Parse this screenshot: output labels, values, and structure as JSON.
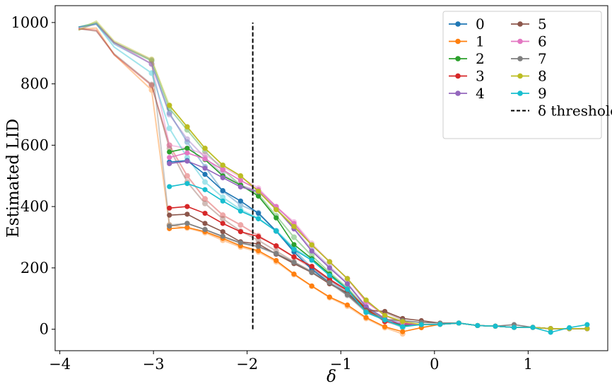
{
  "chart_data": {
    "type": "line",
    "title": "",
    "xlabel": "δ",
    "ylabel": "Estimated LID",
    "xlim": [
      -4.05,
      1.85
    ],
    "ylim": [
      -70,
      1055
    ],
    "xticks": [
      -4,
      -3,
      -2,
      -1,
      0,
      1
    ],
    "xtick_labels": [
      "−4",
      "−3",
      "−2",
      "−1",
      "0",
      "1"
    ],
    "yticks": [
      0,
      200,
      400,
      600,
      800,
      1000
    ],
    "ytick_labels": [
      "0",
      "200",
      "400",
      "600",
      "800",
      "1000"
    ],
    "grid": false,
    "legend": {
      "placement": "top-right",
      "columns": 2
    },
    "threshold": {
      "name": "δ threshold",
      "x": -1.94,
      "y_from": 0,
      "y_to": 1000,
      "style": "dashed",
      "color": "#000000"
    },
    "x": [
      -3.8,
      -3.61,
      -3.42,
      -3.02,
      -2.83,
      -2.64,
      -2.45,
      -2.26,
      -2.07,
      -1.88,
      -1.69,
      -1.5,
      -1.31,
      -1.12,
      -0.93,
      -0.73,
      -0.53,
      -0.34,
      -0.14,
      0.06,
      0.26,
      0.46,
      0.65,
      0.85,
      1.05,
      1.24,
      1.44,
      1.63
    ],
    "faded_start_index": 4,
    "faded_end_index": 16,
    "series": [
      {
        "name": "0",
        "color": "#1f77b4",
        "values": [
          985,
          995,
          930,
          865,
          545,
          550,
          505,
          452,
          418,
          378,
          320,
          252,
          195,
          152,
          115,
          62,
          28,
          12,
          15,
          16,
          20,
          12,
          10,
          6,
          6,
          2,
          2,
          2
        ],
        "faded": [
          985,
          995,
          930,
          865,
          705,
          610,
          530,
          450,
          405,
          380,
          320,
          260,
          200,
          160,
          118,
          70,
          30,
          8
        ]
      },
      {
        "name": "1",
        "color": "#ff7f0e",
        "values": [
          978,
          982,
          895,
          780,
          328,
          332,
          318,
          296,
          272,
          256,
          224,
          180,
          141,
          105,
          79,
          38,
          8,
          -8,
          5,
          16,
          20,
          12,
          10,
          6,
          6,
          2,
          2,
          2
        ],
        "faded": [
          978,
          982,
          895,
          780,
          340,
          330,
          315,
          290,
          268,
          252,
          220,
          178,
          140,
          103,
          75,
          35,
          5,
          -15
        ]
      },
      {
        "name": "2",
        "color": "#2ca02c",
        "values": [
          985,
          1000,
          935,
          875,
          578,
          590,
          553,
          500,
          470,
          434,
          363,
          276,
          230,
          180,
          130,
          65,
          28,
          12,
          15,
          16,
          20,
          12,
          10,
          6,
          6,
          2,
          2,
          2
        ],
        "faded": [
          985,
          1000,
          935,
          875,
          720,
          650,
          580,
          520,
          470,
          440,
          370,
          300,
          240,
          185,
          135,
          70,
          30,
          10
        ]
      },
      {
        "name": "3",
        "color": "#d62728",
        "values": [
          980,
          975,
          895,
          795,
          395,
          400,
          378,
          345,
          318,
          302,
          272,
          236,
          205,
          163,
          127,
          68,
          25,
          18,
          15,
          16,
          20,
          12,
          10,
          6,
          6,
          2,
          2,
          2
        ],
        "faded": [
          980,
          975,
          895,
          795,
          600,
          500,
          425,
          372,
          340,
          305,
          270,
          235,
          200,
          160,
          125,
          65,
          25,
          10
        ]
      },
      {
        "name": "4",
        "color": "#9467bd",
        "values": [
          985,
          995,
          935,
          865,
          540,
          548,
          525,
          494,
          464,
          448,
          393,
          327,
          255,
          200,
          148,
          73,
          35,
          15,
          15,
          16,
          20,
          12,
          10,
          6,
          6,
          2,
          2,
          2
        ],
        "faded": [
          985,
          995,
          935,
          865,
          700,
          620,
          560,
          505,
          470,
          450,
          395,
          330,
          260,
          205,
          150,
          75,
          35,
          12
        ]
      },
      {
        "name": "5",
        "color": "#8c564b",
        "values": [
          980,
          972,
          898,
          798,
          372,
          375,
          345,
          318,
          285,
          278,
          245,
          214,
          185,
          148,
          118,
          62,
          58,
          35,
          28,
          20,
          20,
          12,
          10,
          6,
          6,
          2,
          2,
          2
        ],
        "faded": [
          980,
          972,
          898,
          798,
          590,
          480,
          410,
          360,
          320,
          290,
          255,
          220,
          188,
          150,
          118,
          65,
          55,
          30
        ]
      },
      {
        "name": "6",
        "color": "#e377c2",
        "values": [
          982,
          995,
          935,
          865,
          560,
          575,
          555,
          520,
          485,
          455,
          400,
          345,
          275,
          220,
          165,
          90,
          45,
          22,
          15,
          16,
          20,
          12,
          10,
          6,
          6,
          2,
          2,
          2
        ],
        "faded": [
          982,
          995,
          935,
          865,
          600,
          590,
          570,
          530,
          495,
          460,
          400,
          350,
          280,
          220,
          165,
          90,
          45,
          20
        ]
      },
      {
        "name": "7",
        "color": "#7f7f7f",
        "values": [
          975,
          998,
          935,
          878,
          336,
          345,
          325,
          303,
          282,
          270,
          247,
          218,
          186,
          152,
          112,
          58,
          32,
          28,
          22,
          20,
          20,
          12,
          10,
          15,
          6,
          2,
          2,
          2
        ],
        "faded": [
          975,
          998,
          935,
          878,
          340,
          345,
          325,
          300,
          280,
          268,
          245,
          215,
          185,
          150,
          110,
          55,
          30,
          25
        ]
      },
      {
        "name": "8",
        "color": "#bcbd22",
        "values": [
          975,
          1005,
          940,
          880,
          730,
          660,
          590,
          535,
          500,
          450,
          390,
          335,
          275,
          220,
          165,
          95,
          45,
          25,
          15,
          16,
          20,
          12,
          10,
          6,
          6,
          2,
          2,
          2
        ],
        "faded": [
          975,
          1005,
          940,
          880,
          730,
          660,
          590,
          535,
          500,
          450,
          390,
          340,
          275,
          220,
          165,
          95,
          45,
          25
        ]
      },
      {
        "name": "9",
        "color": "#17becf",
        "values": [
          985,
          995,
          920,
          835,
          465,
          475,
          455,
          418,
          385,
          360,
          320,
          260,
          225,
          175,
          130,
          55,
          30,
          8,
          15,
          16,
          20,
          12,
          10,
          6,
          6,
          -10,
          5,
          15
        ],
        "faded": [
          985,
          995,
          920,
          835,
          655,
          560,
          480,
          430,
          390,
          362,
          322,
          265,
          228,
          178,
          132,
          58,
          30,
          5
        ]
      }
    ]
  }
}
